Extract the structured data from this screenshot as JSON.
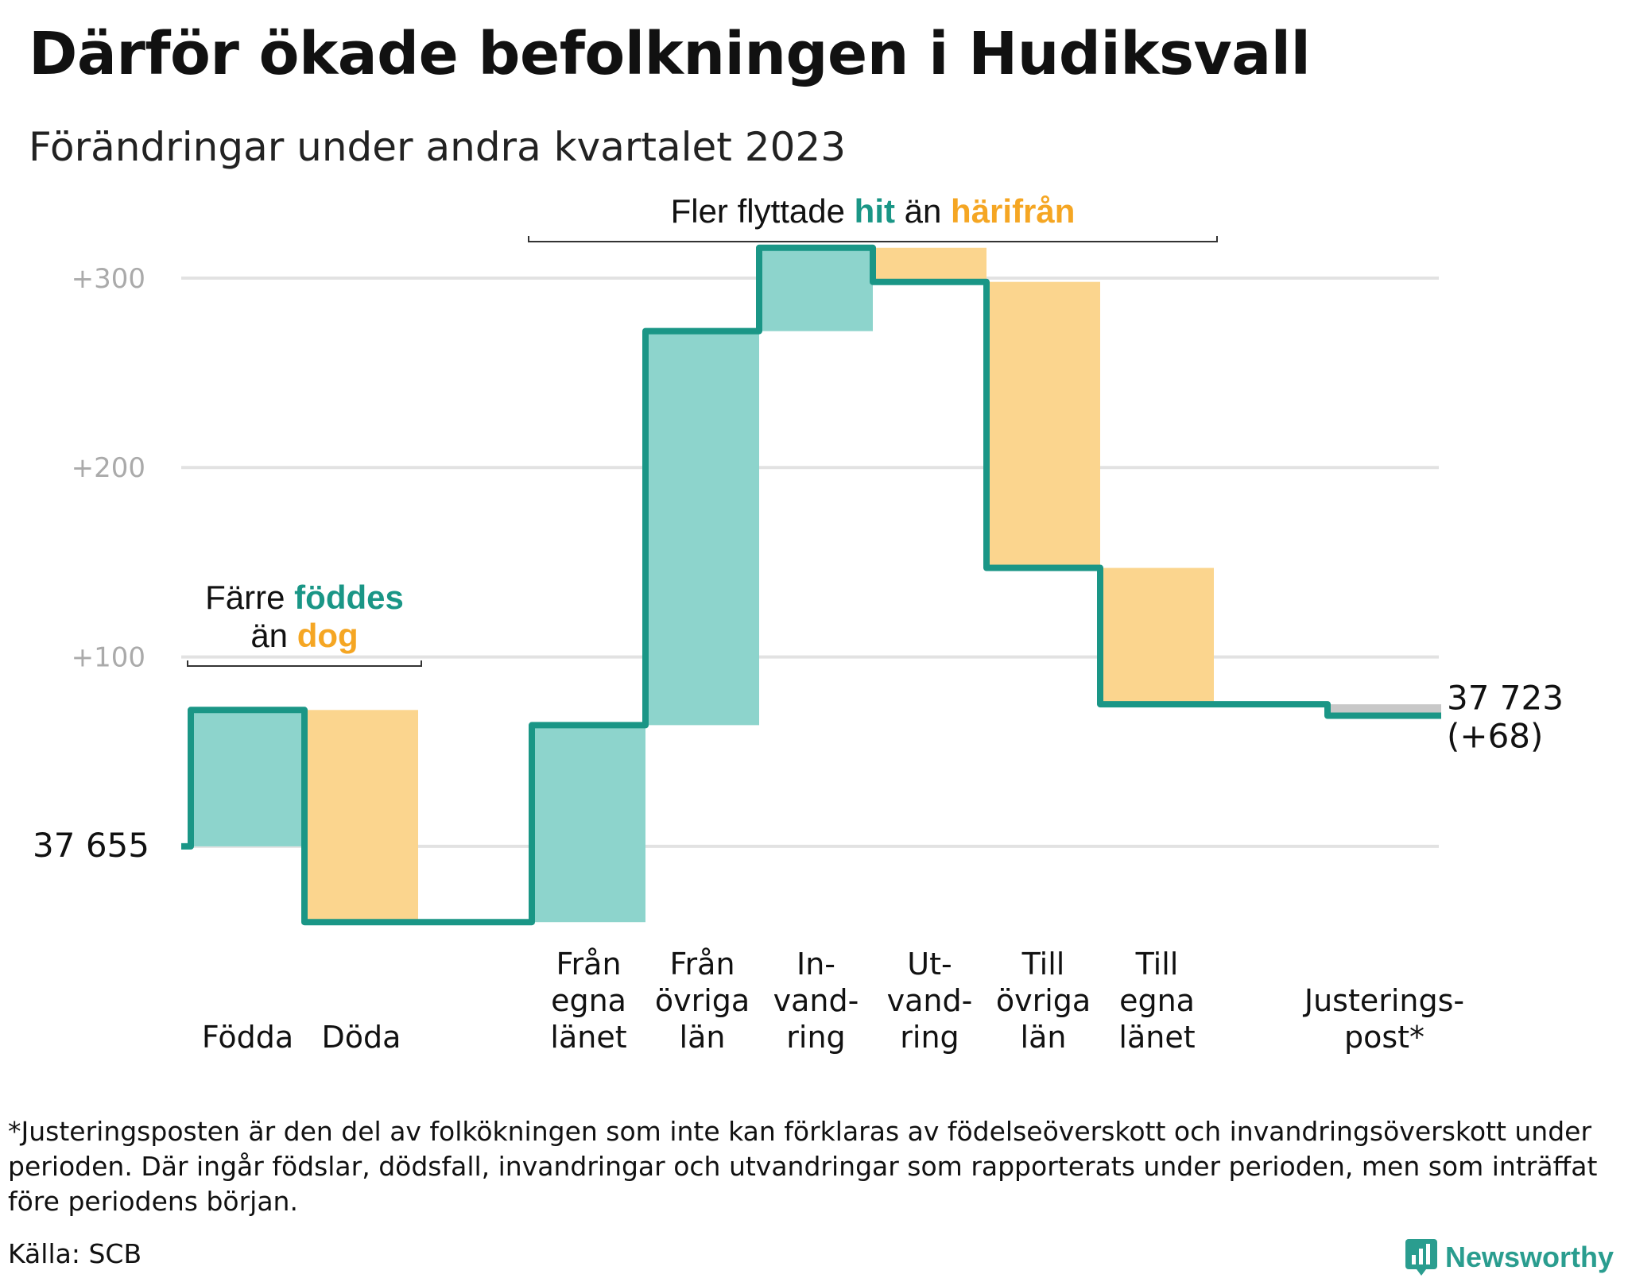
{
  "title": "Därför ökade befolkningen i Hudiksvall",
  "subtitle": "Förändringar under andra kvartalet 2023",
  "colors": {
    "increase": "#8dd4cc",
    "decrease": "#fbd58e",
    "adjustment": "#c8c8c8",
    "line": "#1a9686",
    "accent_teal": "#1a9686",
    "accent_orange": "#f5a623",
    "grid": "#e2e2e2"
  },
  "chart_data": {
    "type": "waterfall",
    "title": "Därför ökade befolkningen i Hudiksvall",
    "subtitle": "Förändringar under andra kvartalet 2023",
    "start_value": 37655,
    "start_label": "37 655",
    "end_value": 37723,
    "end_label": "37 723",
    "end_change_label": "(+68)",
    "ylim": [
      -42,
      318
    ],
    "yticks": [
      100,
      200,
      300
    ],
    "ytick_labels": [
      "+100",
      "+200",
      "+300"
    ],
    "grid": true,
    "steps": [
      {
        "label_lines": [
          "Födda"
        ],
        "delta": 72,
        "kind": "increase"
      },
      {
        "label_lines": [
          "Döda"
        ],
        "delta": -112,
        "kind": "decrease"
      },
      {
        "label_lines": [],
        "delta": 0,
        "kind": "gap"
      },
      {
        "label_lines": [
          "Från",
          "egna",
          "länet"
        ],
        "delta": 104,
        "kind": "increase"
      },
      {
        "label_lines": [
          "Från",
          "övriga",
          "län"
        ],
        "delta": 208,
        "kind": "increase"
      },
      {
        "label_lines": [
          "In-",
          "vand-",
          "ring"
        ],
        "delta": 44,
        "kind": "increase"
      },
      {
        "label_lines": [
          "Ut-",
          "vand-",
          "ring"
        ],
        "delta": -18,
        "kind": "decrease"
      },
      {
        "label_lines": [
          "Till",
          "övriga",
          "län"
        ],
        "delta": -151,
        "kind": "decrease"
      },
      {
        "label_lines": [
          "Till",
          "egna",
          "länet"
        ],
        "delta": -72,
        "kind": "decrease"
      },
      {
        "label_lines": [],
        "delta": 0,
        "kind": "gap"
      },
      {
        "label_lines": [
          "Justerings-",
          "post*"
        ],
        "delta": -6,
        "kind": "adjustment"
      }
    ],
    "annotations": [
      {
        "parts": [
          {
            "text": "Färre ",
            "style": "plain"
          },
          {
            "text": "föddes",
            "style": "teal"
          }
        ],
        "parts2": [
          {
            "text": "än ",
            "style": "plain"
          },
          {
            "text": "dog",
            "style": "orange"
          }
        ],
        "bracket_steps": [
          0,
          1
        ]
      },
      {
        "parts": [
          {
            "text": "Fler flyttade ",
            "style": "plain"
          },
          {
            "text": "hit",
            "style": "teal"
          },
          {
            "text": " än ",
            "style": "plain"
          },
          {
            "text": "härifrån",
            "style": "orange"
          }
        ],
        "bracket_steps": [
          3,
          8
        ]
      }
    ]
  },
  "footnote": "*Justeringsposten är den del av folkökningen som inte kan förklaras av födelseöverskott och invandringsöverskott under perioden. Där ingår födslar, dödsfall, invandringar och utvandringar som rapporterats under perioden, men som inträffat före periodens början.",
  "source": "Källa: SCB",
  "brand": {
    "name": "Newsworthy",
    "icon": "newsworthy-bar-chart-icon"
  }
}
